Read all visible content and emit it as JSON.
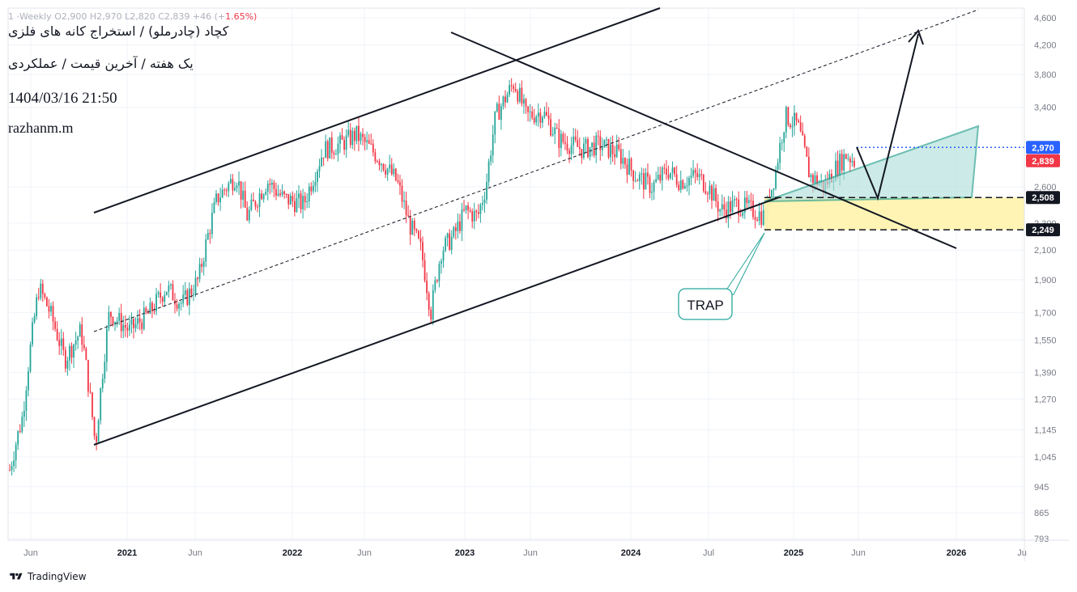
{
  "ohlc": {
    "text": "1  ·Weekly  O2,900  H2,970  L2,820  C2,839  +46  (+",
    "change": "1.65%)"
  },
  "header": {
    "title": "کچاد (چادرملو) / استخراج کانه های فلزی",
    "subtitle": "یک هفته / آخرین قیمت / عملکردی",
    "datetime": "1404/03/16 21:50",
    "author": "razhanm.m"
  },
  "footer": {
    "brand": "TradingView"
  },
  "colors": {
    "up": "#26a69a",
    "down": "#f23645",
    "last_price_bg": "#2962ff",
    "current_bg": "#f23645",
    "level_bg": "#131722",
    "triangle_fill": "#b2dfdb",
    "zone_fill": "#fff3b0",
    "trap_border": "#26a69a"
  },
  "chart_data": {
    "type": "candlestick",
    "title": "کچاد (چادرملو) / استخراج کانه های فلزی",
    "timeframe": "Weekly",
    "last": {
      "open": 2900,
      "high": 2970,
      "low": 2820,
      "close": 2839
    },
    "x_ticks": [
      "Jun",
      "2021",
      "Jun",
      "2022",
      "Jun",
      "2023",
      "Jun",
      "2024",
      "Jul",
      "2025",
      "Jun",
      "2026",
      "Ju"
    ],
    "y_axis": {
      "scale": "log",
      "ticks": [
        793,
        865,
        945,
        1045,
        1145,
        1270,
        1390,
        1550,
        1700,
        1900,
        2100,
        2300,
        2600,
        3400,
        3800,
        4200,
        4600
      ],
      "tick_labels": [
        "793",
        "865",
        "945",
        "1,045",
        "1,145",
        "1,270",
        "1,390",
        "1,550",
        "1,700",
        "1,900",
        "2,100",
        "2,300",
        "2,600",
        "3,400",
        "3,800",
        "4,200",
        "4,600"
      ]
    },
    "price_labels": [
      {
        "value": 2970,
        "label": "2,970",
        "role": "last_high",
        "color": "#2962ff"
      },
      {
        "value": 2839,
        "label": "2,839",
        "role": "current",
        "color": "#f23645"
      },
      {
        "value": 2508,
        "label": "2,508",
        "role": "level",
        "color": "#131722"
      },
      {
        "value": 2249,
        "label": "2,249",
        "role": "level",
        "color": "#131722"
      }
    ],
    "annotations": [
      {
        "type": "ascending_channel",
        "label": ""
      },
      {
        "type": "descending_trendline",
        "label": ""
      },
      {
        "type": "triangle_projection",
        "label": ""
      },
      {
        "type": "support_zone",
        "from": 2249,
        "to": 2508
      },
      {
        "type": "callout",
        "text": "TRAP"
      }
    ],
    "grid": true
  }
}
